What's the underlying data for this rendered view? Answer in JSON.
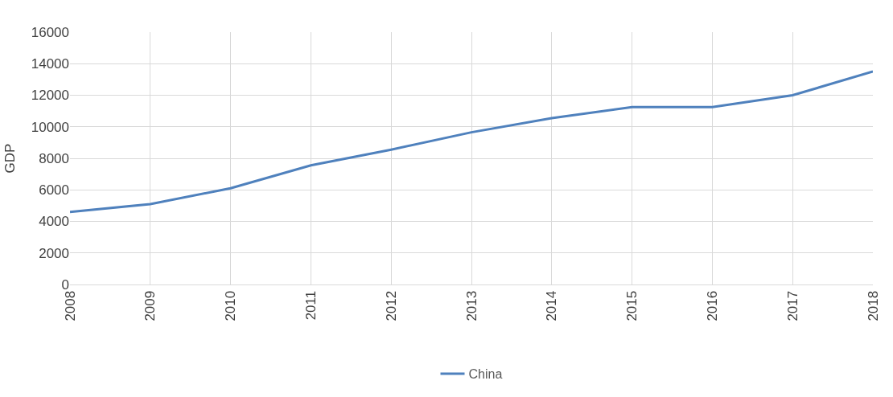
{
  "chart_data": {
    "type": "line",
    "ylabel": "GDP",
    "categories": [
      "2008",
      "2009",
      "2010",
      "2011",
      "2012",
      "2013",
      "2014",
      "2015",
      "2016",
      "2017",
      "2018"
    ],
    "series": [
      {
        "name": "China",
        "color": "#4f81bd",
        "values": [
          4600,
          5100,
          6100,
          7550,
          8550,
          9650,
          10550,
          11250,
          11250,
          12000,
          13500
        ]
      }
    ],
    "ylim": [
      0,
      16000
    ],
    "yticks": [
      0,
      2000,
      4000,
      6000,
      8000,
      10000,
      12000,
      14000,
      16000
    ],
    "grid": true,
    "legend": "bottom",
    "marker": "none",
    "line_style": "solid"
  }
}
